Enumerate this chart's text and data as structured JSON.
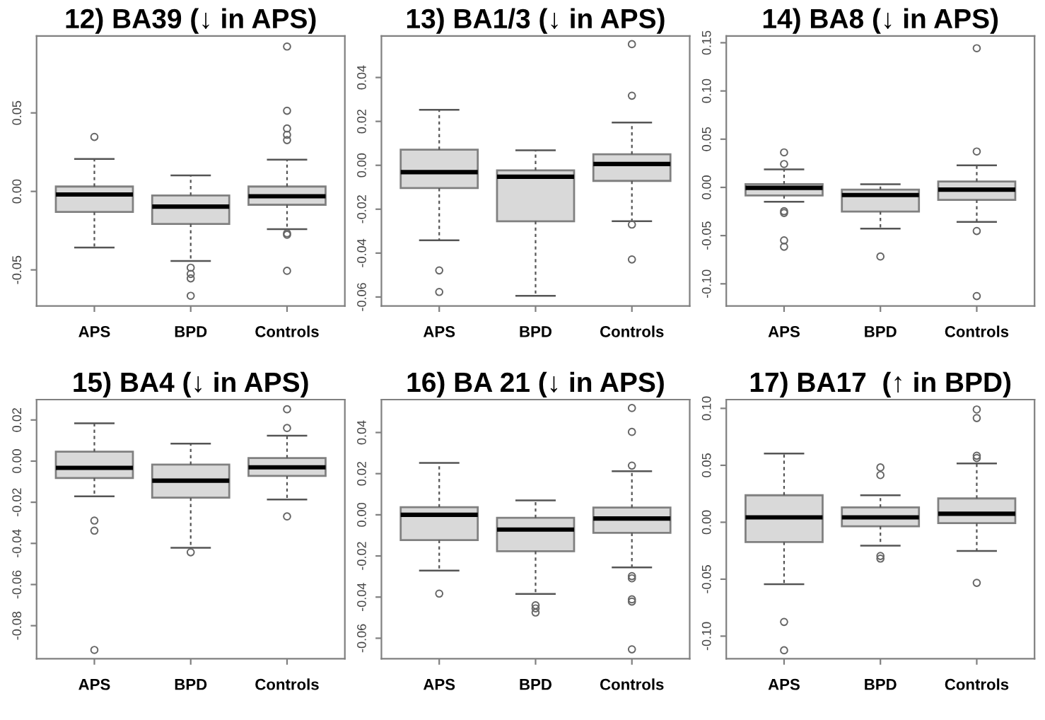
{
  "chart_data": [
    {
      "type": "box",
      "title": "12) BA39 (↓ in APS)",
      "categories": [
        "APS",
        "BPD",
        "Controls"
      ],
      "color": "#d9d9d9",
      "ylim": [
        -0.073,
        0.099
      ],
      "yticks": [
        {
          "value": -0.05,
          "label": "-0.05"
        },
        {
          "value": 0,
          "label": "0.00"
        },
        {
          "value": 0.05,
          "label": "0.05"
        }
      ],
      "boxes": [
        {
          "low": -0.0358,
          "q1": -0.0131,
          "median": -0.002,
          "q3": 0.0031,
          "high": 0.0207,
          "outliers": [
            0.0347
          ]
        },
        {
          "low": -0.0443,
          "q1": -0.0207,
          "median": -0.0097,
          "q3": -0.0026,
          "high": 0.0102,
          "outliers": [
            -0.0486,
            -0.0526,
            -0.0554,
            -0.0665
          ]
        },
        {
          "low": -0.0241,
          "q1": -0.0085,
          "median": -0.0031,
          "q3": 0.0031,
          "high": 0.0202,
          "outliers": [
            0.0923,
            0.0514,
            0.0401,
            0.0361,
            0.0327,
            -0.0267,
            -0.0276,
            -0.0506
          ]
        }
      ]
    },
    {
      "type": "box",
      "title": "13) BA1/3 (↓ in APS)",
      "categories": [
        "APS",
        "BPD",
        "Controls"
      ],
      "color": "#d9d9d9",
      "ylim": [
        -0.0641,
        0.0589
      ],
      "yticks": [
        {
          "value": -0.06,
          "label": "-0.06"
        },
        {
          "value": -0.04,
          "label": "-0.04"
        },
        {
          "value": -0.02,
          "label": "-0.02"
        },
        {
          "value": 0,
          "label": "0.00"
        },
        {
          "value": 0.02,
          "label": "0.02"
        },
        {
          "value": 0.04,
          "label": "0.04"
        }
      ],
      "boxes": [
        {
          "low": -0.0342,
          "q1": -0.0104,
          "median": -0.0031,
          "q3": 0.0071,
          "high": 0.0253,
          "outliers": [
            -0.0479,
            -0.0577
          ]
        },
        {
          "low": -0.0595,
          "q1": -0.0255,
          "median": -0.0052,
          "q3": -0.0023,
          "high": 0.0068
        },
        {
          "low": -0.0255,
          "q1": -0.0071,
          "median": 0.0006,
          "q3": 0.005,
          "high": 0.0195,
          "outliers": [
            0.0552,
            0.0317,
            -0.027,
            -0.0429
          ]
        }
      ]
    },
    {
      "type": "box",
      "title": "14) BA8 (↓ in APS)",
      "categories": [
        "APS",
        "BPD",
        "Controls"
      ],
      "color": "#d9d9d9",
      "ylim": [
        -0.123,
        0.157
      ],
      "yticks": [
        {
          "value": -0.1,
          "label": "-0.10"
        },
        {
          "value": -0.05,
          "label": "-0.05"
        },
        {
          "value": 0,
          "label": "0.00"
        },
        {
          "value": 0.05,
          "label": "0.05"
        },
        {
          "value": 0.1,
          "label": "0.10"
        },
        {
          "value": 0.15,
          "label": "0.15"
        }
      ],
      "boxes": [
        {
          "low": -0.0149,
          "q1": -0.0084,
          "median": -0.0005,
          "q3": 0.0033,
          "high": 0.0186,
          "outliers": [
            0.0363,
            0.0242,
            -0.0247,
            -0.0265,
            -0.0549,
            -0.0615
          ]
        },
        {
          "low": -0.0428,
          "q1": -0.0251,
          "median": -0.0079,
          "q3": -0.0023,
          "high": 0.0033,
          "outliers": [
            -0.0717
          ]
        },
        {
          "low": -0.0358,
          "q1": -0.013,
          "median": -0.0023,
          "q3": 0.0061,
          "high": 0.0228,
          "outliers": [
            0.1443,
            0.0372,
            -0.0452,
            -0.1127
          ]
        }
      ]
    },
    {
      "type": "box",
      "title": "15) BA4 (↓ in APS)",
      "categories": [
        "APS",
        "BPD",
        "Controls"
      ],
      "color": "#d9d9d9",
      "ylim": [
        -0.0961,
        0.0299
      ],
      "yticks": [
        {
          "value": -0.08,
          "label": "-0.08"
        },
        {
          "value": -0.06,
          "label": "-0.06"
        },
        {
          "value": -0.04,
          "label": "-0.04"
        },
        {
          "value": -0.02,
          "label": "-0.02"
        },
        {
          "value": 0,
          "label": "0.00"
        },
        {
          "value": 0.02,
          "label": "0.02"
        }
      ],
      "boxes": [
        {
          "low": -0.0171,
          "q1": -0.0082,
          "median": -0.0033,
          "q3": 0.0046,
          "high": 0.0184,
          "outliers": [
            -0.0289,
            -0.0338,
            -0.0918
          ]
        },
        {
          "low": -0.0421,
          "q1": -0.0178,
          "median": -0.0095,
          "q3": -0.0017,
          "high": 0.0085,
          "outliers": [
            -0.0443
          ]
        },
        {
          "low": -0.0187,
          "q1": -0.0072,
          "median": -0.003,
          "q3": 0.0015,
          "high": 0.0124,
          "outliers": [
            0.0252,
            0.0161,
            -0.0269
          ]
        }
      ]
    },
    {
      "type": "box",
      "title": "16) BA 21 (↓ in APS)",
      "categories": [
        "APS",
        "BPD",
        "Controls"
      ],
      "color": "#d9d9d9",
      "ylim": [
        -0.07,
        0.056
      ],
      "yticks": [
        {
          "value": -0.06,
          "label": "-0.06"
        },
        {
          "value": -0.04,
          "label": "-0.04"
        },
        {
          "value": -0.02,
          "label": "-0.02"
        },
        {
          "value": 0,
          "label": "0.00"
        },
        {
          "value": 0.02,
          "label": "0.02"
        },
        {
          "value": 0.04,
          "label": "0.04"
        }
      ],
      "boxes": [
        {
          "low": -0.0271,
          "q1": -0.0123,
          "median": 0.0,
          "q3": 0.0037,
          "high": 0.0252,
          "outliers": [
            -0.0383
          ]
        },
        {
          "low": -0.0385,
          "q1": -0.0177,
          "median": -0.0072,
          "q3": -0.0015,
          "high": 0.007,
          "outliers": [
            -0.044,
            -0.0455,
            -0.0475
          ]
        },
        {
          "low": -0.0256,
          "q1": -0.0088,
          "median": -0.0018,
          "q3": 0.0035,
          "high": 0.0212,
          "outliers": [
            0.0519,
            0.0403,
            0.0239,
            -0.0298,
            -0.0309,
            -0.0411,
            -0.0422,
            -0.0654
          ]
        }
      ]
    },
    {
      "type": "box",
      "title": "17) BA17  (↑ in BPD)",
      "categories": [
        "APS",
        "BPD",
        "Controls"
      ],
      "color": "#d9d9d9",
      "ylim": [
        -0.1199,
        0.1077
      ],
      "yticks": [
        {
          "value": -0.1,
          "label": "-0.10"
        },
        {
          "value": -0.05,
          "label": "-0.05"
        },
        {
          "value": 0,
          "label": "0.00"
        },
        {
          "value": 0.05,
          "label": "0.05"
        },
        {
          "value": 0.1,
          "label": "0.10"
        }
      ],
      "boxes": [
        {
          "low": -0.0544,
          "q1": -0.0174,
          "median": 0.0043,
          "q3": 0.0237,
          "high": 0.0603,
          "outliers": [
            -0.0875,
            -0.1124
          ]
        },
        {
          "low": -0.0205,
          "q1": -0.0035,
          "median": 0.0043,
          "q3": 0.013,
          "high": 0.0237,
          "outliers": [
            0.0481,
            0.0414,
            -0.0296,
            -0.0319
          ]
        },
        {
          "low": -0.0252,
          "q1": -0.0008,
          "median": 0.0075,
          "q3": 0.0209,
          "high": 0.0517,
          "outliers": [
            0.099,
            0.0915,
            0.0584,
            0.0564,
            -0.0532
          ]
        }
      ]
    }
  ]
}
